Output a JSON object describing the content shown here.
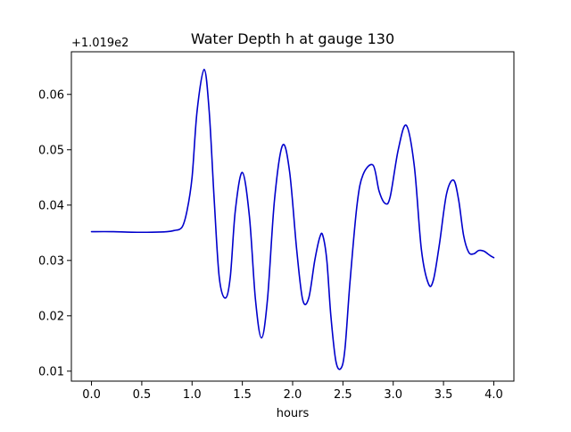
{
  "chart_data": {
    "type": "line",
    "title": "Water Depth h at gauge 130",
    "xlabel": "hours",
    "ylabel": "",
    "y_offset_label": "+1.019e2",
    "y_offset": 101.9,
    "xlim": [
      -0.2,
      4.2
    ],
    "ylim": [
      0.0082,
      0.0677
    ],
    "x_ticks": [
      0.0,
      0.5,
      1.0,
      1.5,
      2.0,
      2.5,
      3.0,
      3.5,
      4.0
    ],
    "x_tick_labels": [
      "0.0",
      "0.5",
      "1.0",
      "1.5",
      "2.0",
      "2.5",
      "3.0",
      "3.5",
      "4.0"
    ],
    "y_ticks": [
      0.01,
      0.02,
      0.03,
      0.04,
      0.05,
      0.06
    ],
    "y_tick_labels": [
      "0.01",
      "0.02",
      "0.03",
      "0.04",
      "0.05",
      "0.06"
    ],
    "grid": false,
    "line_color": "#0000cc",
    "series": [
      {
        "x": [
          0.0,
          0.2,
          0.4,
          0.6,
          0.75,
          0.82,
          0.9,
          0.95,
          1.0,
          1.05,
          1.12,
          1.17,
          1.22,
          1.27,
          1.33,
          1.38,
          1.43,
          1.5,
          1.57,
          1.63,
          1.69,
          1.75,
          1.82,
          1.9,
          1.97,
          2.04,
          2.1,
          2.16,
          2.22,
          2.27,
          2.3,
          2.34,
          2.38,
          2.43,
          2.48,
          2.52,
          2.57,
          2.64,
          2.7,
          2.8,
          2.86,
          2.92,
          2.97,
          3.05,
          3.13,
          3.21,
          3.28,
          3.35,
          3.4,
          3.46,
          3.53,
          3.6,
          3.65,
          3.7,
          3.75,
          3.8,
          3.85,
          3.9,
          3.94,
          3.97,
          4.0
        ],
        "y": [
          0.0352,
          0.0352,
          0.0351,
          0.0351,
          0.0352,
          0.0354,
          0.036,
          0.039,
          0.045,
          0.057,
          0.0645,
          0.057,
          0.041,
          0.027,
          0.0232,
          0.027,
          0.039,
          0.0459,
          0.038,
          0.023,
          0.016,
          0.023,
          0.041,
          0.0508,
          0.046,
          0.032,
          0.0229,
          0.0232,
          0.03,
          0.0342,
          0.0345,
          0.03,
          0.02,
          0.0118,
          0.0105,
          0.014,
          0.026,
          0.04,
          0.0455,
          0.0472,
          0.0425,
          0.0403,
          0.0415,
          0.05,
          0.0544,
          0.047,
          0.032,
          0.0258,
          0.0265,
          0.033,
          0.042,
          0.0445,
          0.041,
          0.0345,
          0.0315,
          0.0312,
          0.0318,
          0.0317,
          0.0312,
          0.0308,
          0.0305
        ]
      }
    ]
  }
}
